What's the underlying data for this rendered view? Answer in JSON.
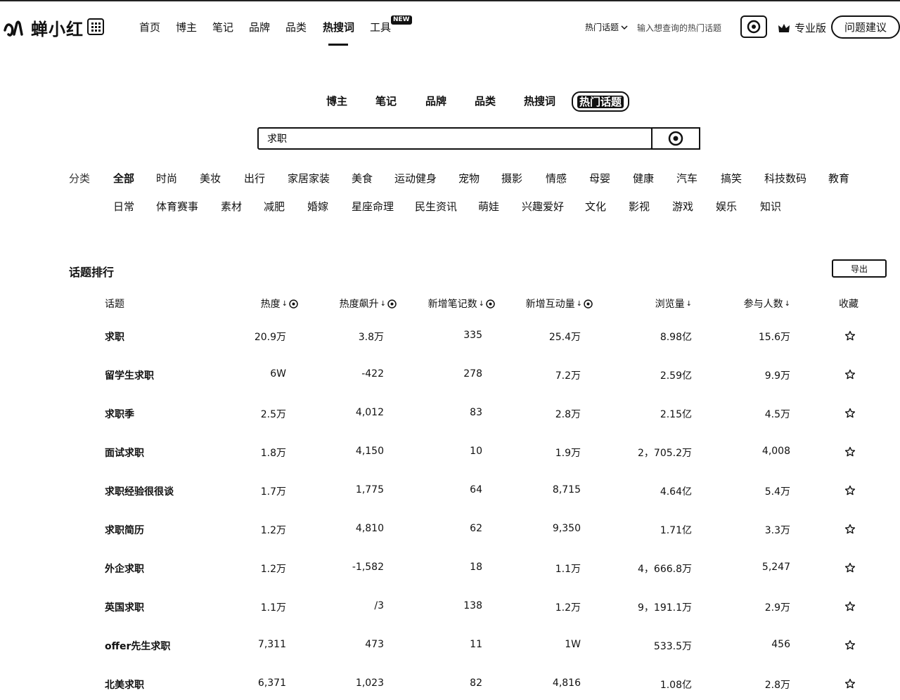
{
  "brand": {
    "name": "蝉小红"
  },
  "nav": {
    "items": [
      "首页",
      "博主",
      "笔记",
      "品牌",
      "品类",
      "热搜词",
      "工具"
    ],
    "active": "热搜词",
    "new_badge": "NEW"
  },
  "header": {
    "hot_select": "热门话题",
    "hot_placeholder": "输入想查询的热门话题",
    "pro_label": "专业版",
    "feedback_label": "问题建议"
  },
  "sub_tabs": {
    "items": [
      "博主",
      "笔记",
      "品牌",
      "品类",
      "热搜词",
      "热门话题"
    ],
    "active": "热门话题"
  },
  "search": {
    "value": "求职"
  },
  "categories": {
    "label": "分类",
    "row1": [
      "全部",
      "时尚",
      "美妆",
      "出行",
      "家居家装",
      "美食",
      "运动健身",
      "宠物",
      "摄影",
      "情感",
      "母婴",
      "健康",
      "汽车",
      "搞笑",
      "科技数码",
      "教育"
    ],
    "row2": [
      "日常",
      "体育赛事",
      "素材",
      "减肥",
      "婚嫁",
      "星座命理",
      "民生资讯",
      "萌娃",
      "兴趣爱好",
      "文化",
      "影视",
      "游戏",
      "娱乐",
      "知识"
    ]
  },
  "ranking": {
    "title": "话题排行",
    "export_label": "导出",
    "columns": [
      "话题",
      "热度",
      "热度飙升",
      "新增笔记数",
      "新增互动量",
      "浏览量",
      "参与人数",
      "收藏"
    ],
    "rows": [
      [
        "求职",
        "20.9万",
        "3.8万",
        "335",
        "25.4万",
        "8.98亿",
        "15.6万"
      ],
      [
        "留学生求职",
        "6W",
        "-422",
        "278",
        "7.2万",
        "2.59亿",
        "9.9万"
      ],
      [
        "求职季",
        "2.5万",
        "4,012",
        "83",
        "2.8万",
        "2.15亿",
        "4.5万"
      ],
      [
        "面试求职",
        "1.8万",
        "4,150",
        "10",
        "1.9万",
        "2，705.2万",
        "4,008"
      ],
      [
        "求职经验很很谈",
        "1.7万",
        "1,775",
        "64",
        "8,715",
        "4.64亿",
        "5.4万"
      ],
      [
        "求职简历",
        "1.2万",
        "4,810",
        "62",
        "9,350",
        "1.71亿",
        "3.3万"
      ],
      [
        "外企求职",
        "1.2万",
        "-1,582",
        "18",
        "1.1万",
        "4，666.8万",
        "5,247"
      ],
      [
        "英国求职",
        "1.1万",
        "/3",
        "138",
        "1.2万",
        "9，191.1万",
        "2.9万"
      ],
      [
        "offer先生求职",
        "7,311",
        "473",
        "11",
        "1W",
        "533.5万",
        "456"
      ],
      [
        "北美求职",
        "6,371",
        "1,023",
        "82",
        "4,816",
        "1.08亿",
        "2.8万"
      ]
    ]
  },
  "icons": {
    "logo": "cicada-logo-icon",
    "apps": "grid-apps-icon",
    "search": "search-icon",
    "crown": "crown-icon",
    "star": "star-outline-icon",
    "info": "info-circle-icon",
    "sort": "sort-arrow-icon"
  }
}
